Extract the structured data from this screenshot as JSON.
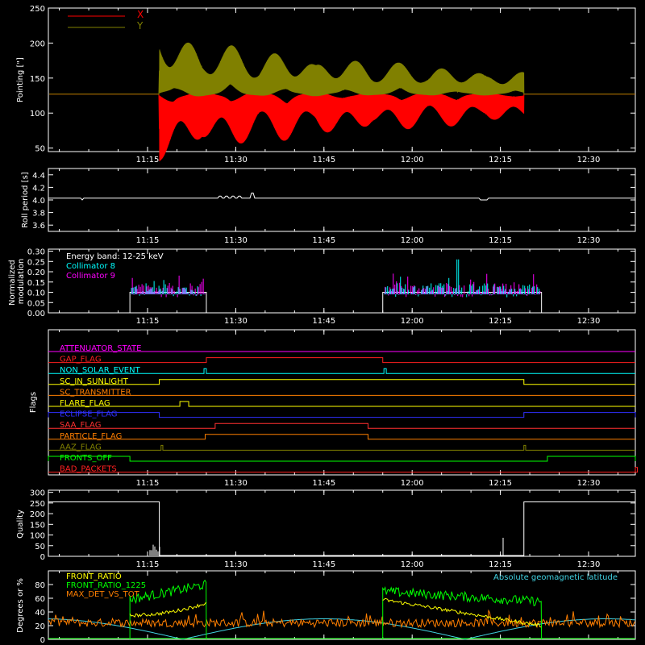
{
  "colors": {
    "background": "#000000",
    "axis": "#ffffff",
    "x": "#ff0000",
    "y": "#808000",
    "white": "#ffffff",
    "cyan": "#00ffff",
    "magenta": "#ff00ff",
    "yellow": "#ffff00",
    "green": "#00ff00",
    "orange": "#ff7f00",
    "lat": "#40d0e0"
  },
  "time_ticks": [
    "11:15",
    "11:30",
    "11:45",
    "12:00",
    "12:15",
    "12:30"
  ],
  "chart_data": [
    {
      "type": "line",
      "ylabel": "Pointing [\"]",
      "ylim": [
        45,
        250
      ],
      "yticks": [
        50,
        100,
        150,
        200,
        250
      ],
      "series": [
        {
          "name": "X",
          "color": "#ff0000",
          "base": 127,
          "amplitude_start": 110,
          "amplitude_end": 42
        },
        {
          "name": "Y",
          "color": "#808000",
          "base": 127,
          "amplitude_start": 105,
          "amplitude_end": 34
        }
      ],
      "oscillation_start": "11:17",
      "oscillation_end": "12:19",
      "legend": [
        "X",
        "Y"
      ]
    },
    {
      "type": "line",
      "ylabel": "Roll period [s]",
      "ylim": [
        3.5,
        4.5
      ],
      "yticks": [
        "3.6",
        "3.8",
        "4.0",
        "4.2",
        "4.4"
      ],
      "values": {
        "baseline": 4.03
      }
    },
    {
      "type": "bar",
      "ylabel": "Normalized modulation",
      "ylim": [
        0,
        0.31
      ],
      "yticks": [
        "0.00",
        "0.05",
        "0.10",
        "0.15",
        "0.20",
        "0.25",
        "0.30"
      ],
      "legend_title": "Energy band: 12-25 keV",
      "series": [
        {
          "name": "Collimator 8",
          "color": "#00ffff"
        },
        {
          "name": "Collimator 9",
          "color": "#ff00ff"
        }
      ],
      "windows": [
        [
          "11:12",
          "11:25"
        ],
        [
          "11:55",
          "12:22"
        ]
      ]
    },
    {
      "type": "line",
      "ylabel": "Flags",
      "flags": [
        {
          "name": "ATTENUATOR_STATE",
          "color": "#ff00ff",
          "on": []
        },
        {
          "name": "GAP_FLAG",
          "color": "#ff2020",
          "on": [
            [
              "11:25",
              "11:55"
            ]
          ]
        },
        {
          "name": "NON_SOLAR_EVENT",
          "color": "#00ffff",
          "on": [
            [
              "11:24.6",
              "11:25"
            ],
            [
              "11:55.2",
              "11:55.6"
            ]
          ]
        },
        {
          "name": "SC_IN_SUNLIGHT",
          "color": "#ffff00",
          "on": [
            [
              "11:17",
              "12:19"
            ]
          ]
        },
        {
          "name": "SC_TRANSMITTER",
          "color": "#ff7f00",
          "on": []
        },
        {
          "name": "FLARE_FLAG",
          "color": "#ffff00",
          "on": [
            [
              "11:20.5",
              "11:22"
            ]
          ]
        },
        {
          "name": "ECLIPSE_FLAG",
          "color": "#3030ff",
          "on": [
            [
              "10:54",
              "11:17"
            ],
            [
              "12:19",
              "12:41"
            ]
          ]
        },
        {
          "name": "SAA_FLAG",
          "color": "#ff3030",
          "on": [
            [
              "11:26.5",
              "11:52.5"
            ]
          ]
        },
        {
          "name": "PARTICLE_FLAG",
          "color": "#ff7f00",
          "on": [
            [
              "11:24.8",
              "11:52.5"
            ]
          ]
        },
        {
          "name": "AAZ_FLAG",
          "color": "#808000",
          "on": [
            [
              "11:17.3",
              "11:17.6"
            ],
            [
              "12:19",
              "12:19.3"
            ]
          ]
        },
        {
          "name": "FRONTS_OFF",
          "color": "#00ff00",
          "on": [
            [
              "10:54",
              "11:12"
            ],
            [
              "12:23",
              "12:41"
            ]
          ]
        },
        {
          "name": "BAD_PACKETS",
          "color": "#ff2020",
          "on": [
            [
              "12:38.3",
              "12:38.6"
            ]
          ]
        }
      ]
    },
    {
      "type": "line",
      "ylabel": "Quality",
      "ylim": [
        0,
        310
      ],
      "yticks": [
        0,
        50,
        100,
        150,
        200,
        250,
        300
      ],
      "values": {
        "high": 255
      }
    },
    {
      "type": "line",
      "ylabel": "Degrees or %",
      "ylim": [
        0,
        100
      ],
      "series": [
        {
          "name": "FRONT_RATIO",
          "color": "#ffff00"
        },
        {
          "name": "FRONT_RATIO_1225",
          "color": "#00ff00"
        },
        {
          "name": "MAX_DET_VS_TOT",
          "color": "#ff7f00"
        },
        {
          "name": "Absolute geomagnetic latitude",
          "color": "#40d0e0"
        }
      ]
    }
  ]
}
